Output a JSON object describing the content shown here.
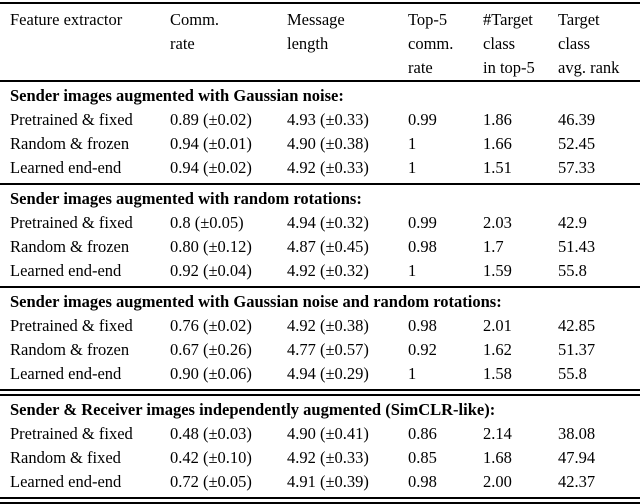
{
  "table": {
    "columns": [
      "Feature extractor",
      "Comm.\nrate",
      "Message\nlength",
      "Top-5\ncomm.\nrate",
      "#Target\nclass\nin top-5",
      "Target\nclass\navg. rank"
    ],
    "sections": [
      {
        "title": "Sender images augmented with Gaussian noise:",
        "rows": [
          {
            "cells": [
              "Pretrained & fixed",
              "0.89 (±0.02)",
              "4.93 (±0.33)",
              "0.99",
              "1.86",
              "46.39"
            ]
          },
          {
            "cells": [
              "Random & frozen",
              "0.94 (±0.01)",
              "4.90 (±0.38)",
              "1",
              "1.66",
              "52.45"
            ]
          },
          {
            "cells": [
              "Learned end-end",
              "0.94 (±0.02)",
              "4.92 (±0.33)",
              "1",
              "1.51",
              "57.33"
            ]
          }
        ]
      },
      {
        "title": "Sender images augmented with random rotations:",
        "rows": [
          {
            "cells": [
              "Pretrained & fixed",
              "0.8 (±0.05)",
              "4.94 (±0.32)",
              "0.99",
              "2.03",
              "42.9"
            ]
          },
          {
            "cells": [
              "Random & frozen",
              "0.80 (±0.12)",
              "4.87 (±0.45)",
              "0.98",
              "1.7",
              "51.43"
            ]
          },
          {
            "cells": [
              "Learned end-end",
              "0.92 (±0.04)",
              "4.92 (±0.32)",
              "1",
              "1.59",
              "55.8"
            ]
          }
        ]
      },
      {
        "title": "Sender images augmented with Gaussian noise and random rotations:",
        "rows": [
          {
            "cells": [
              "Pretrained & fixed",
              "0.76 (±0.02)",
              "4.92 (±0.38)",
              "0.98",
              "2.01",
              "42.85"
            ]
          },
          {
            "cells": [
              "Random & frozen",
              "0.67 (±0.26)",
              "4.77 (±0.57)",
              "0.92",
              "1.62",
              "51.37"
            ]
          },
          {
            "cells": [
              "Learned end-end",
              "0.90 (±0.06)",
              "4.94 (±0.29)",
              "1",
              "1.58",
              "55.8"
            ]
          }
        ]
      },
      {
        "title": "Sender & Receiver images independently augmented (SimCLR-like):",
        "rows": [
          {
            "cells": [
              "Pretrained & fixed",
              "0.48 (±0.03)",
              "4.90 (±0.41)",
              "0.86",
              "2.14",
              "38.08"
            ]
          },
          {
            "cells": [
              "Random & fixed",
              "0.42 (±0.10)",
              "4.92 (±0.33)",
              "0.85",
              "1.68",
              "47.94"
            ]
          },
          {
            "cells": [
              "Learned end-end",
              "0.72 (±0.05)",
              "4.91 (±0.39)",
              "0.98",
              "2.00",
              "42.37"
            ]
          }
        ]
      }
    ]
  }
}
